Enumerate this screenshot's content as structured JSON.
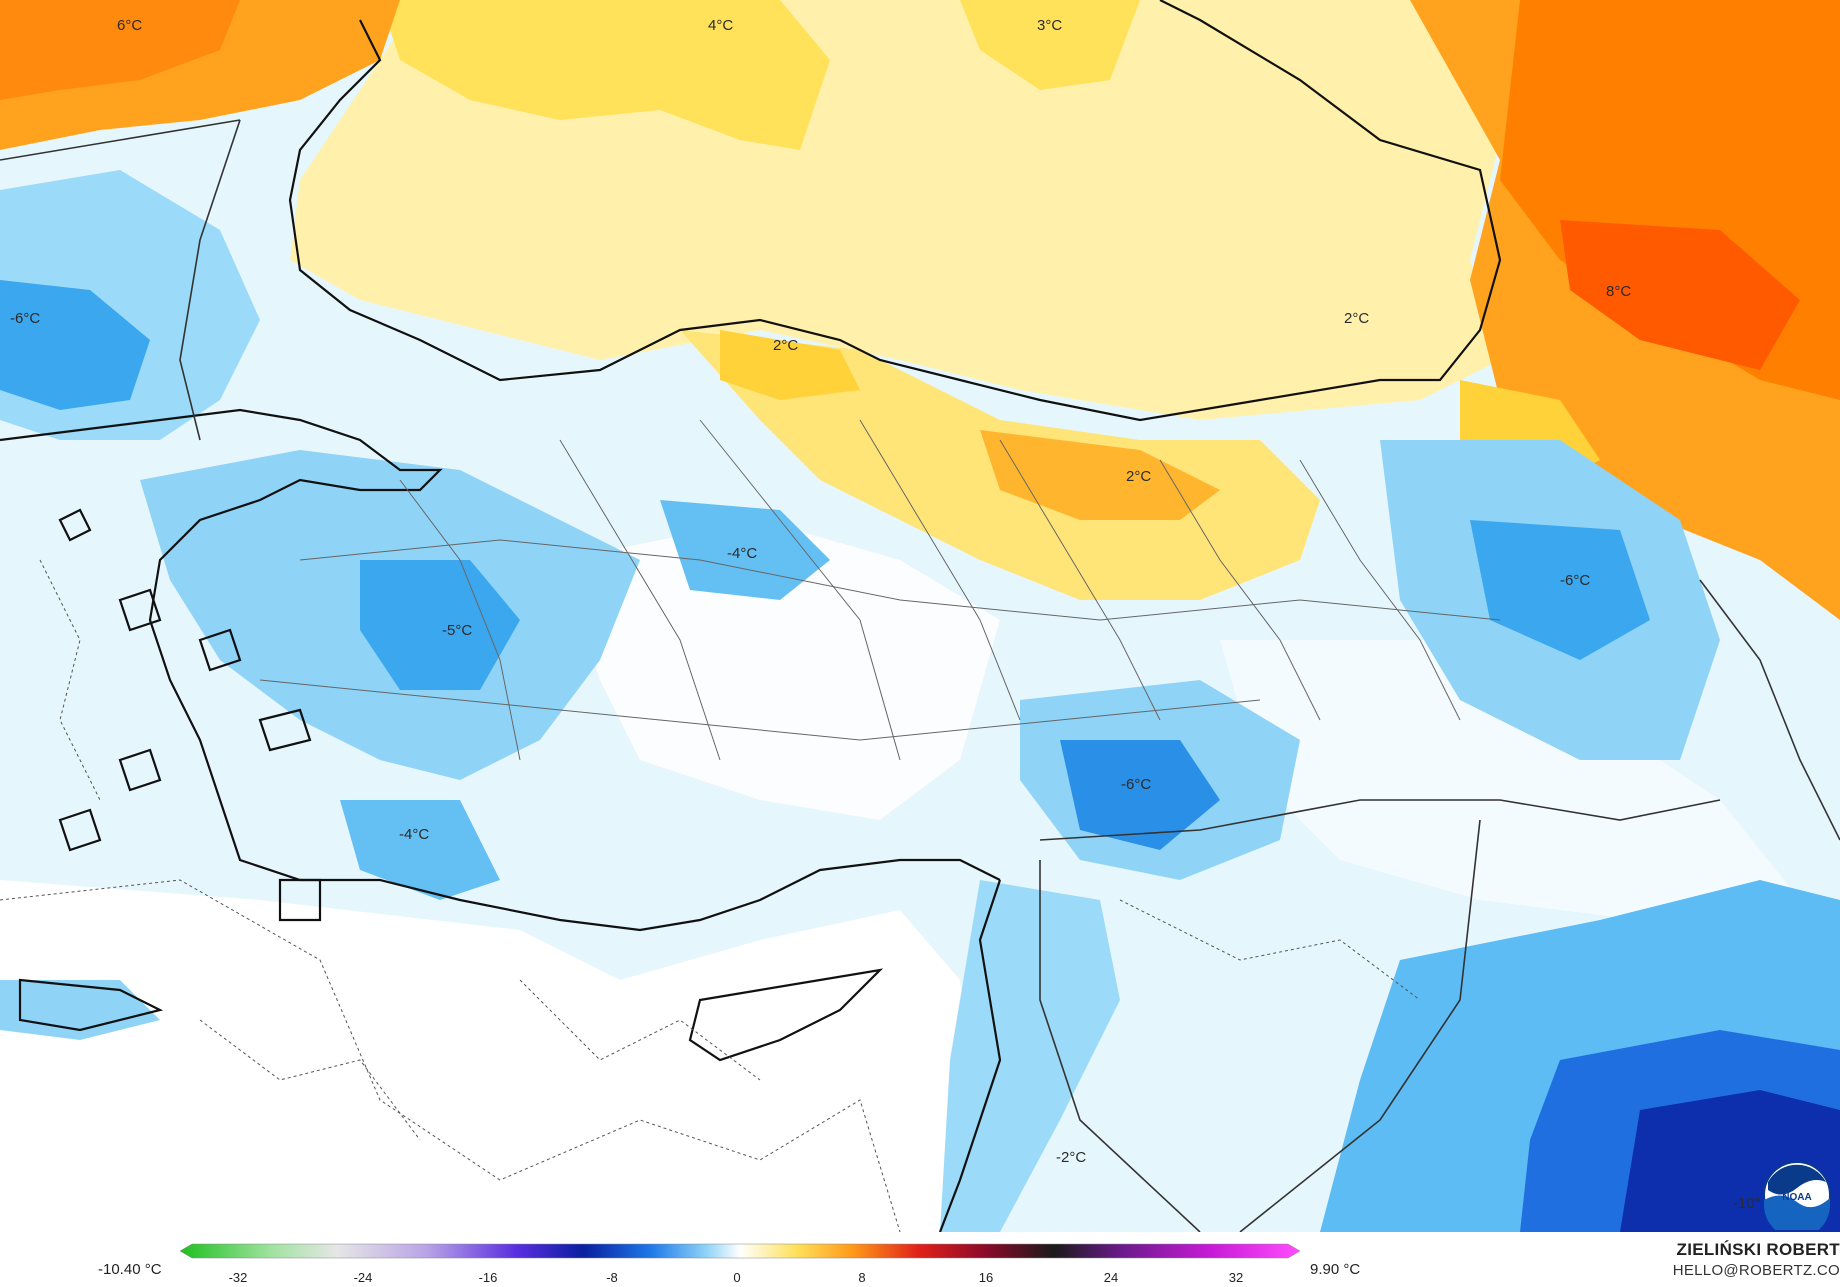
{
  "map_labels": [
    {
      "id": "lbl-6c-nw",
      "text": "6°C"
    },
    {
      "id": "lbl-4c-north",
      "text": "4°C"
    },
    {
      "id": "lbl-3c-north",
      "text": "3°C"
    },
    {
      "id": "lbl-8c-east",
      "text": "8°C"
    },
    {
      "id": "lbl-2c-blacksea",
      "text": "2°C"
    },
    {
      "id": "lbl-m6c-west",
      "text": "-6°C"
    },
    {
      "id": "lbl-2c-coast",
      "text": "2°C"
    },
    {
      "id": "lbl-2c-ne",
      "text": "2°C"
    },
    {
      "id": "lbl-m4c-central",
      "text": "-4°C"
    },
    {
      "id": "lbl-m5c-west",
      "text": "-5°C"
    },
    {
      "id": "lbl-m6c-east",
      "text": "-6°C"
    },
    {
      "id": "lbl-m6c-south",
      "text": "-6°C"
    },
    {
      "id": "lbl-m4c-sw",
      "text": "-4°C"
    },
    {
      "id": "lbl-m2c-south",
      "text": "-2°C"
    },
    {
      "id": "lbl-m10c-se",
      "text": "-10°"
    }
  ],
  "legend": {
    "min_label": "-10.40 °C",
    "max_label": "9.90 °C",
    "ticks": [
      "-32",
      "-24",
      "-16",
      "-8",
      "0",
      "8",
      "16",
      "24",
      "32"
    ],
    "colors": {
      "deep_cold": "#0b2ea8",
      "cold": "#1e90e8",
      "cool": "#8fd3f7",
      "chill": "#d6f0fb",
      "neutral": "#ffffff",
      "mild": "#fff3b0",
      "warm": "#ffd23a",
      "warmer": "#ff9a1a",
      "hot": "#ff6a00"
    }
  },
  "credits": {
    "author": "ZIELIŃSKI ROBERT",
    "email": "HELLO@ROBERTZ.CO",
    "logo_text": "NOAA"
  }
}
